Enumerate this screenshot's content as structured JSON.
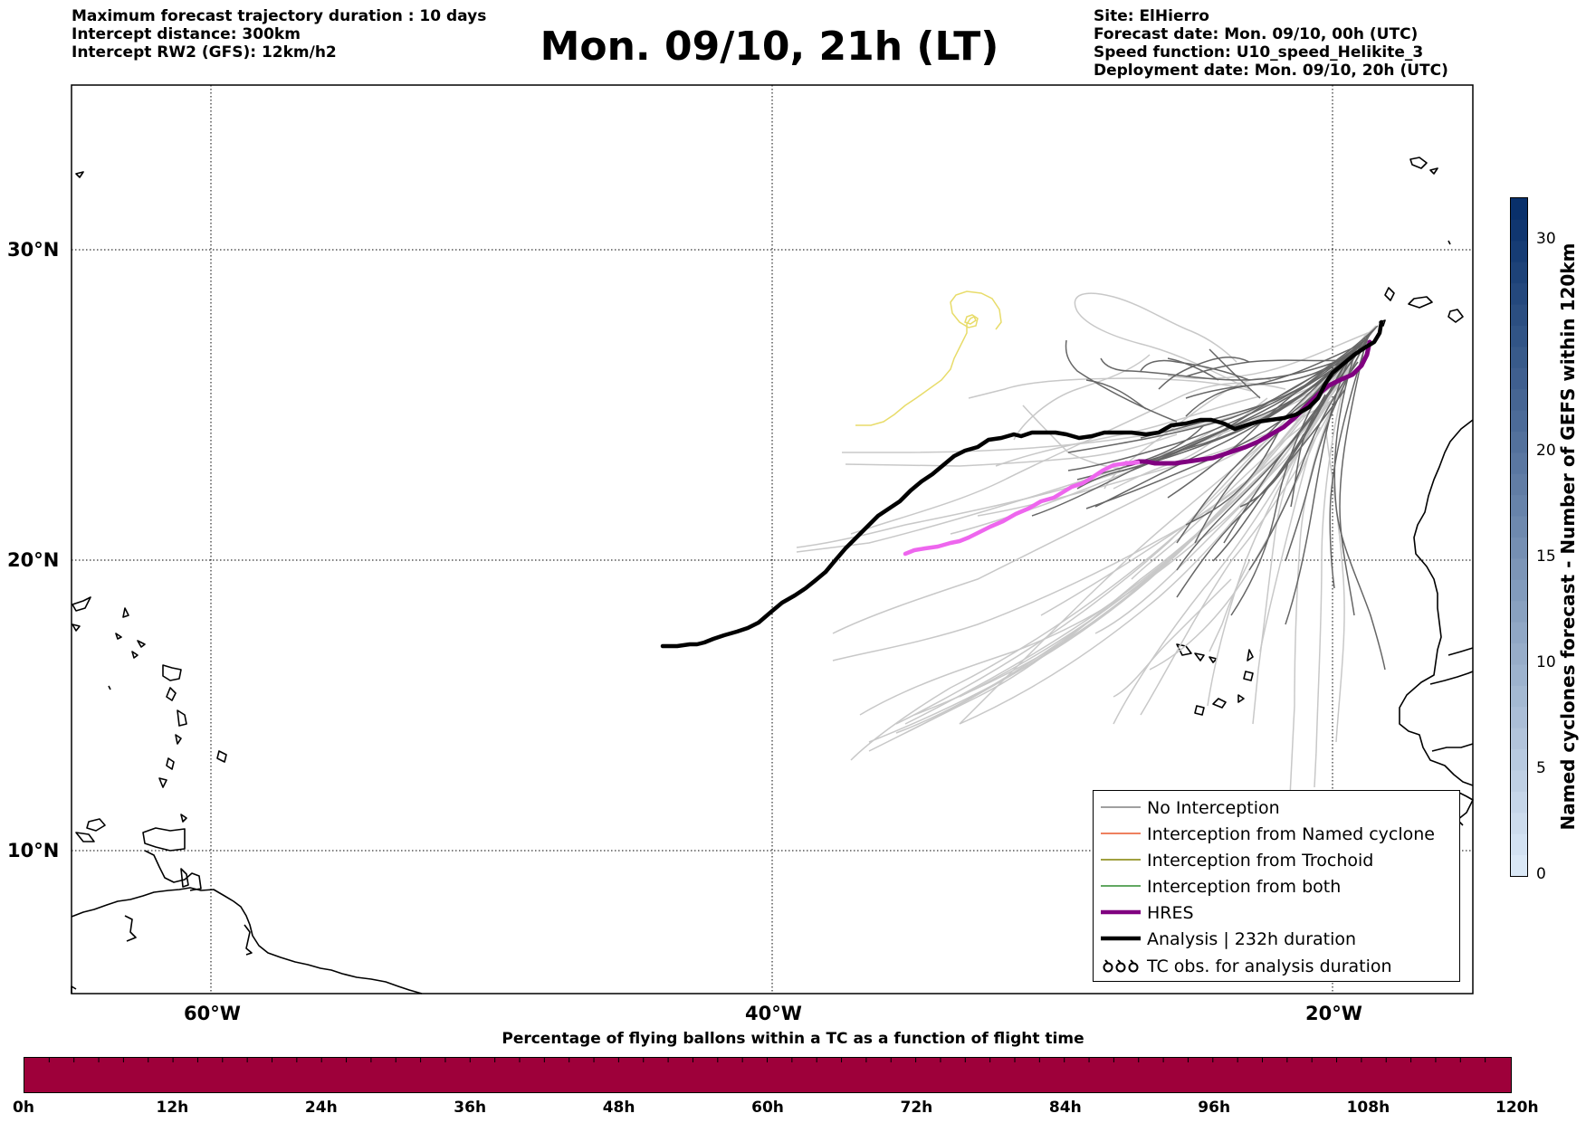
{
  "header_left": [
    "Maximum forecast trajectory duration : 10 days",
    "Intercept distance: 300km",
    "Intercept RW2 (GFS):  12km/h2"
  ],
  "title": "Mon. 09/10, 21h (LT)",
  "header_right": [
    "Site: ElHierro",
    "Forecast date: Mon. 09/10, 00h (UTC)",
    "Speed function: U10_speed_Helikite_3",
    "Deployment date: Mon. 09/10, 20h (UTC)"
  ],
  "map": {
    "lon_range": [
      -65,
      15
    ],
    "lat_range": [
      5,
      35
    ],
    "lon_ticks": [
      "60°W",
      "40°W",
      "20°W"
    ],
    "lat_ticks": [
      "30°N",
      "20°N",
      "10°N"
    ],
    "grid": "dotted"
  },
  "legend": {
    "items": [
      {
        "label": "No Interception",
        "color": "#808080",
        "symbol": "thin-line"
      },
      {
        "label": "Interception from Named cyclone",
        "color": "#e8562a",
        "symbol": "thin-line"
      },
      {
        "label": "Interception from Trochoid",
        "color": "#808000",
        "symbol": "thin-line"
      },
      {
        "label": "Interception from both",
        "color": "#2e8b2e",
        "symbol": "thin-line"
      },
      {
        "label": "HRES",
        "color": "#800080",
        "symbol": "thick-line"
      },
      {
        "label": "Analysis | 232h duration",
        "color": "#000000",
        "symbol": "thick-line"
      },
      {
        "label": "TC obs. for analysis duration",
        "color": "#000000",
        "symbol": "cyclone-glyphs"
      }
    ]
  },
  "colorbar_bottom": {
    "title": "Percentage of flying ballons within a TC as a function of flight time",
    "ticks": [
      "0h",
      "12h",
      "24h",
      "36h",
      "48h",
      "60h",
      "72h",
      "84h",
      "96h",
      "108h",
      "120h"
    ],
    "fill_color": "#9e003a"
  },
  "colorbar_right": {
    "title": "Named cyclones forecast - Number of GEFS within 120km",
    "ticks": [
      "0",
      "5",
      "10",
      "15",
      "20",
      "30"
    ],
    "range": [
      0,
      32
    ]
  },
  "colors": {
    "hres": "#800080",
    "hres_branch": "#ee66ee",
    "analysis": "#000000",
    "ensemble_dark": "#666666",
    "ensemble_light": "#c8c8c8",
    "cyclone_track": "#e8dc6a"
  }
}
